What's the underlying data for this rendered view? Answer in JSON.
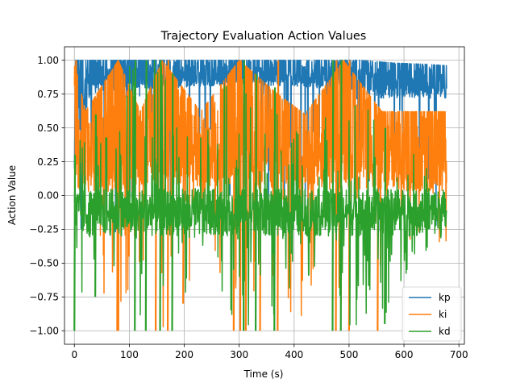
{
  "chart_data": {
    "type": "line",
    "title": "Trajectory Evaluation Action Values",
    "xlabel": "Time (s)",
    "ylabel": "Action Value",
    "xlim": [
      -18,
      710
    ],
    "ylim": [
      -1.1,
      1.1
    ],
    "x_ticks": [
      0,
      100,
      200,
      300,
      400,
      500,
      600,
      700
    ],
    "x_tick_labels": [
      "0",
      "100",
      "200",
      "300",
      "400",
      "500",
      "600",
      "700"
    ],
    "y_ticks": [
      -1.0,
      -0.75,
      -0.5,
      -0.25,
      0.0,
      0.25,
      0.5,
      0.75,
      1.0
    ],
    "y_tick_labels": [
      "−1.00",
      "−0.75",
      "−0.50",
      "−0.25",
      "0.00",
      "0.25",
      "0.50",
      "0.75",
      "1.00"
    ],
    "grid": true,
    "legend_position": "bottom-right",
    "x_range": [
      0,
      678
    ],
    "series": [
      {
        "name": "kp",
        "color": "#1f77b4",
        "envelope": [
          {
            "x": 0,
            "low": -0.3,
            "high": 0.2
          },
          {
            "x": 2,
            "low": -0.45,
            "high": 1.0
          },
          {
            "x": 30,
            "low": -0.5,
            "high": 1.0
          },
          {
            "x": 60,
            "low": -0.45,
            "high": 1.0
          },
          {
            "x": 100,
            "low": -0.4,
            "high": 1.0
          },
          {
            "x": 160,
            "low": -0.35,
            "high": 1.0
          },
          {
            "x": 200,
            "low": -0.42,
            "high": 1.0
          },
          {
            "x": 260,
            "low": -0.35,
            "high": 1.0
          },
          {
            "x": 300,
            "low": -0.38,
            "high": 1.0
          },
          {
            "x": 360,
            "low": -0.45,
            "high": 1.0
          },
          {
            "x": 420,
            "low": -0.35,
            "high": 1.0
          },
          {
            "x": 465,
            "low": -0.52,
            "high": 1.0
          },
          {
            "x": 520,
            "low": -0.4,
            "high": 1.0
          },
          {
            "x": 580,
            "low": -0.35,
            "high": 0.98
          },
          {
            "x": 640,
            "low": -0.32,
            "high": 0.97
          },
          {
            "x": 678,
            "low": -0.3,
            "high": 0.96
          }
        ],
        "base_low": [
          {
            "x": 0,
            "y": 0.2
          },
          {
            "x": 30,
            "y": 0.75
          },
          {
            "x": 100,
            "y": 0.78
          },
          {
            "x": 200,
            "y": 0.8
          },
          {
            "x": 300,
            "y": 0.82
          },
          {
            "x": 420,
            "y": 0.8
          },
          {
            "x": 500,
            "y": 0.78
          },
          {
            "x": 560,
            "y": 0.72
          },
          {
            "x": 678,
            "y": 0.72
          }
        ]
      },
      {
        "name": "ki",
        "color": "#ff7f0e",
        "envelope": [
          {
            "x": 0,
            "low": -0.3,
            "high": 1.0
          },
          {
            "x": 20,
            "low": -0.5,
            "high": 0.62
          },
          {
            "x": 80,
            "low": -1.0,
            "high": 1.0
          },
          {
            "x": 120,
            "low": -0.6,
            "high": 0.62
          },
          {
            "x": 160,
            "low": -1.0,
            "high": 1.0
          },
          {
            "x": 230,
            "low": -0.55,
            "high": 0.62
          },
          {
            "x": 300,
            "low": -1.0,
            "high": 1.0
          },
          {
            "x": 370,
            "low": -1.0,
            "high": 0.75
          },
          {
            "x": 420,
            "low": -1.0,
            "high": 0.6
          },
          {
            "x": 490,
            "low": -1.0,
            "high": 1.0
          },
          {
            "x": 560,
            "low": -0.5,
            "high": 0.62
          },
          {
            "x": 620,
            "low": -0.35,
            "high": 0.62
          },
          {
            "x": 678,
            "low": -0.35,
            "high": 0.62
          }
        ],
        "base_low": [
          {
            "x": 0,
            "y": 0.0
          },
          {
            "x": 100,
            "y": 0.05
          },
          {
            "x": 200,
            "y": 0.07
          },
          {
            "x": 300,
            "y": 0.04
          },
          {
            "x": 400,
            "y": 0.05
          },
          {
            "x": 500,
            "y": 0.04
          },
          {
            "x": 600,
            "y": 0.03
          },
          {
            "x": 678,
            "y": 0.03
          }
        ]
      },
      {
        "name": "kd",
        "color": "#2ca02c",
        "envelope": [
          {
            "x": 0,
            "low": -1.0,
            "high": 0.4
          },
          {
            "x": 20,
            "low": -0.8,
            "high": 0.45
          },
          {
            "x": 60,
            "low": -0.65,
            "high": 0.5
          },
          {
            "x": 100,
            "low": -1.0,
            "high": 1.0
          },
          {
            "x": 160,
            "low": -1.0,
            "high": 1.0
          },
          {
            "x": 220,
            "low": -0.6,
            "high": 0.45
          },
          {
            "x": 300,
            "low": -1.0,
            "high": 1.0
          },
          {
            "x": 370,
            "low": -1.0,
            "high": 0.6
          },
          {
            "x": 440,
            "low": -0.55,
            "high": 0.4
          },
          {
            "x": 490,
            "low": -1.0,
            "high": 1.0
          },
          {
            "x": 560,
            "low": -0.95,
            "high": 0.5
          },
          {
            "x": 620,
            "low": -0.45,
            "high": 0.3
          },
          {
            "x": 678,
            "low": -0.35,
            "high": 0.08
          }
        ],
        "base_low": [
          {
            "x": 0,
            "y": -0.3
          },
          {
            "x": 678,
            "y": -0.3
          }
        ],
        "base_high": [
          {
            "x": 0,
            "y": 0.05
          },
          {
            "x": 678,
            "y": 0.05
          }
        ]
      }
    ],
    "spikes": [
      {
        "series": "ki",
        "x": 2,
        "low": 0.45,
        "high": 1.0
      },
      {
        "series": "ki",
        "x": 78,
        "low": -1.0,
        "high": 1.0
      },
      {
        "series": "ki",
        "x": 80,
        "low": -1.0,
        "high": 0.9
      },
      {
        "series": "ki",
        "x": 148,
        "low": -1.0,
        "high": 0.8
      },
      {
        "series": "ki",
        "x": 170,
        "low": -1.0,
        "high": 1.0
      },
      {
        "series": "ki",
        "x": 198,
        "low": -0.8,
        "high": 0.6
      },
      {
        "series": "ki",
        "x": 290,
        "low": -1.0,
        "high": 0.9
      },
      {
        "series": "ki",
        "x": 302,
        "low": -1.0,
        "high": 1.0
      },
      {
        "series": "ki",
        "x": 312,
        "low": -1.0,
        "high": 0.8
      },
      {
        "series": "ki",
        "x": 338,
        "low": -1.0,
        "high": 0.7
      },
      {
        "series": "ki",
        "x": 370,
        "low": -1.0,
        "high": 1.0
      },
      {
        "series": "ki",
        "x": 476,
        "low": -1.0,
        "high": 1.0
      },
      {
        "series": "ki",
        "x": 500,
        "low": -1.0,
        "high": 1.0
      },
      {
        "series": "ki",
        "x": 552,
        "low": -1.0,
        "high": 0.6
      },
      {
        "series": "kd",
        "x": 0,
        "low": -1.0,
        "high": 0.3
      },
      {
        "series": "kd",
        "x": 38,
        "low": -0.75,
        "high": 0.6
      },
      {
        "series": "kd",
        "x": 110,
        "low": -1.0,
        "high": 1.0
      },
      {
        "series": "kd",
        "x": 130,
        "low": -1.0,
        "high": 1.0
      },
      {
        "series": "kd",
        "x": 156,
        "low": -1.0,
        "high": 1.0
      },
      {
        "series": "kd",
        "x": 178,
        "low": -1.0,
        "high": 0.9
      },
      {
        "series": "kd",
        "x": 308,
        "low": -1.0,
        "high": 1.0
      },
      {
        "series": "kd",
        "x": 330,
        "low": -1.0,
        "high": 0.9
      },
      {
        "series": "kd",
        "x": 364,
        "low": -1.0,
        "high": 0.8
      },
      {
        "series": "kd",
        "x": 470,
        "low": -1.0,
        "high": 1.0
      },
      {
        "series": "kd",
        "x": 485,
        "low": -1.0,
        "high": 1.0
      },
      {
        "series": "kd",
        "x": 565,
        "low": -0.95,
        "high": 0.5
      }
    ]
  }
}
